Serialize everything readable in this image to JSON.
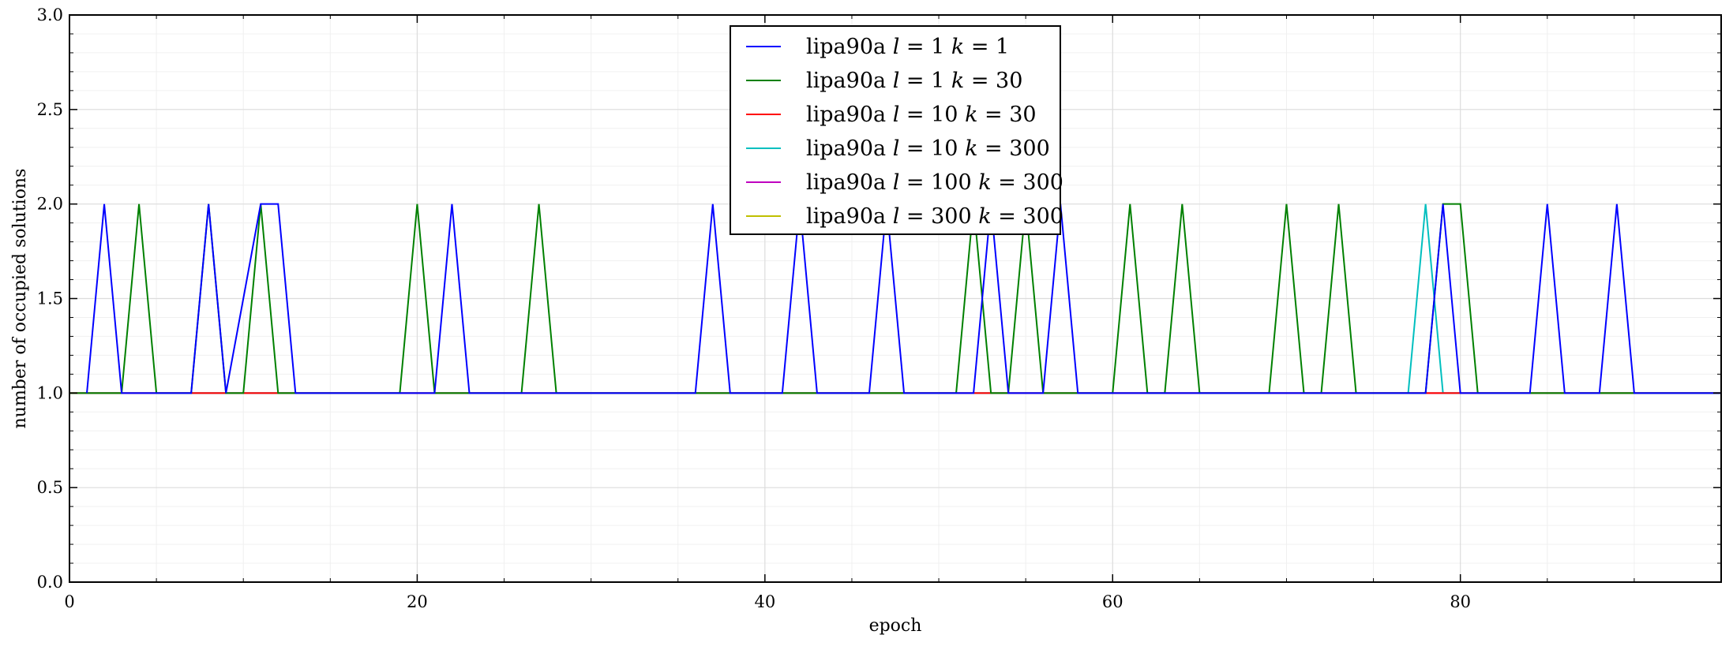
{
  "chart_data": {
    "type": "line",
    "title": "",
    "xlabel": "epoch",
    "ylabel": "number of occupied solutions",
    "xlim": [
      0,
      95
    ],
    "ylim": [
      0.0,
      3.0
    ],
    "x_ticks": [
      0,
      20,
      40,
      60,
      80
    ],
    "x_tick_labels": [
      "0",
      "20",
      "40",
      "60",
      "80"
    ],
    "y_ticks": [
      0.0,
      0.5,
      1.0,
      1.5,
      2.0,
      2.5,
      3.0
    ],
    "y_tick_labels": [
      "0.0",
      "0.5",
      "1.0",
      "1.5",
      "2.0",
      "2.5",
      "3.0"
    ],
    "grid": true,
    "legend_position": "top-center",
    "series": [
      {
        "name": "lipa90a l = 1 k = 1",
        "label_parts": [
          "lipa90a ",
          "l",
          " = 1 ",
          "k",
          " = 1"
        ],
        "color": "#0000ff",
        "x": [
          1,
          2,
          3,
          7,
          8,
          9,
          11,
          12,
          13,
          21,
          22,
          23,
          36,
          37,
          38,
          41,
          42,
          43,
          46,
          47,
          48,
          52,
          53,
          54,
          56,
          57,
          58,
          78,
          79,
          80,
          84,
          85,
          86,
          88,
          89,
          90,
          95
        ],
        "y": [
          1,
          2,
          1,
          1,
          2,
          1,
          2,
          2,
          1,
          1,
          2,
          1,
          1,
          2,
          1,
          1,
          2,
          1,
          1,
          2,
          1,
          1,
          2,
          1,
          1,
          2,
          1,
          1,
          2,
          1,
          1,
          2,
          1,
          1,
          2,
          1,
          1
        ]
      },
      {
        "name": "lipa90a l = 1 k = 30",
        "label_parts": [
          "lipa90a ",
          "l",
          " = 1 ",
          "k",
          " = 30"
        ],
        "color": "#008000",
        "x": [
          0,
          3,
          4,
          5,
          7,
          8,
          9,
          10,
          11,
          12,
          19,
          20,
          21,
          26,
          27,
          28,
          51,
          52,
          53,
          54,
          55,
          56,
          60,
          61,
          62,
          63,
          64,
          65,
          69,
          70,
          71,
          72,
          73,
          74,
          78,
          79,
          80,
          81,
          95
        ],
        "y": [
          1,
          1,
          2,
          1,
          1,
          2,
          1,
          1,
          2,
          1,
          1,
          2,
          1,
          1,
          2,
          1,
          1,
          2,
          1,
          1,
          2,
          1,
          1,
          2,
          1,
          1,
          2,
          1,
          1,
          2,
          1,
          1,
          2,
          1,
          1,
          2,
          2,
          1,
          1
        ]
      },
      {
        "name": "lipa90a l = 10 k = 30",
        "label_parts": [
          "lipa90a ",
          "l",
          " = 10 ",
          "k",
          " = 30"
        ],
        "color": "#ff0000",
        "x": [
          0,
          95
        ],
        "y": [
          1,
          1
        ]
      },
      {
        "name": "lipa90a l = 10 k = 300",
        "label_parts": [
          "lipa90a ",
          "l",
          " = 10 ",
          "k",
          " = 300"
        ],
        "color": "#00bfbf",
        "x": [
          0,
          77,
          78,
          79,
          95
        ],
        "y": [
          1,
          1,
          2,
          1,
          1
        ]
      },
      {
        "name": "lipa90a l = 100 k = 300",
        "label_parts": [
          "lipa90a ",
          "l",
          " = 100 ",
          "k",
          " = 300"
        ],
        "color": "#bf00bf",
        "x": [
          0,
          95
        ],
        "y": [
          1,
          1
        ]
      },
      {
        "name": "lipa90a l = 300 k = 300",
        "label_parts": [
          "lipa90a ",
          "l",
          " = 300 ",
          "k",
          " = 300"
        ],
        "color": "#bfbf00",
        "x": [
          0,
          95
        ],
        "y": [
          1,
          1
        ]
      }
    ]
  }
}
